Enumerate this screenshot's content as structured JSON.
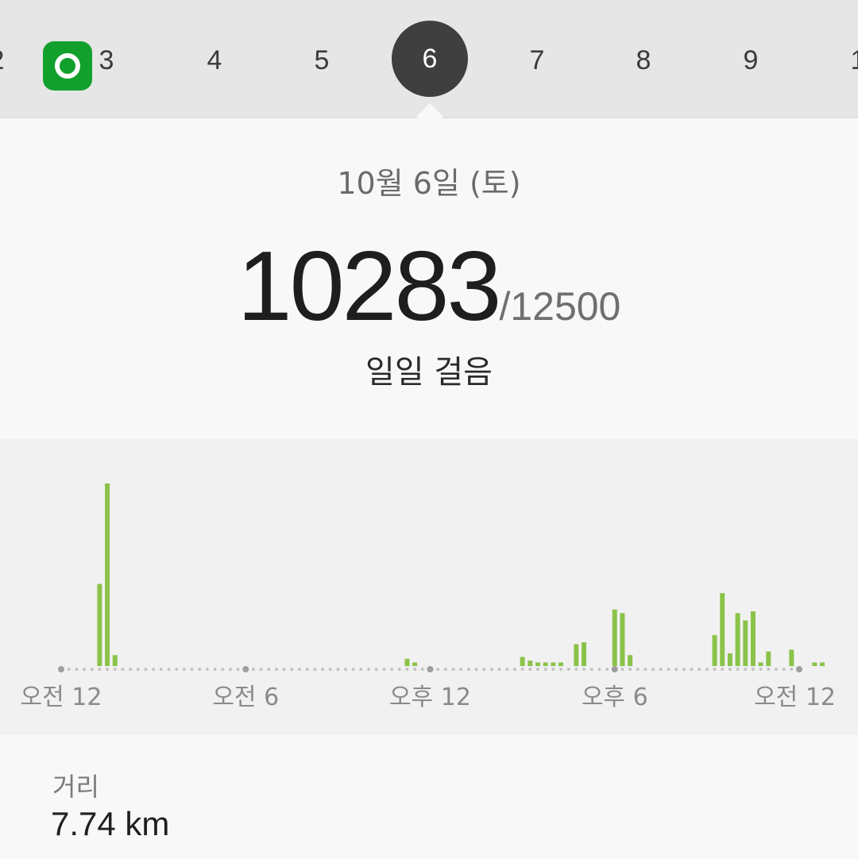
{
  "date_strip": {
    "days": [
      "2",
      "3",
      "4",
      "5",
      "6",
      "7",
      "8",
      "9",
      "1"
    ],
    "selected_day": "6"
  },
  "summary": {
    "date": "10월 6일 (토)",
    "steps": "10283",
    "goal": "/12500",
    "label": "일일 걸음"
  },
  "chart_data": {
    "type": "bar",
    "x_axis_labels": [
      "오전 12",
      "오전 6",
      "오후 12",
      "오후 6",
      "오전 12"
    ],
    "interval_minutes": 15,
    "y_max": 1.0,
    "bars": [
      {
        "slot": 5,
        "value": 0.45
      },
      {
        "slot": 6,
        "value": 1.0
      },
      {
        "slot": 7,
        "value": 0.06
      },
      {
        "slot": 45,
        "value": 0.04
      },
      {
        "slot": 46,
        "value": 0.02
      },
      {
        "slot": 60,
        "value": 0.05
      },
      {
        "slot": 61,
        "value": 0.03
      },
      {
        "slot": 62,
        "value": 0.02
      },
      {
        "slot": 63,
        "value": 0.02
      },
      {
        "slot": 64,
        "value": 0.02
      },
      {
        "slot": 65,
        "value": 0.02
      },
      {
        "slot": 67,
        "value": 0.12
      },
      {
        "slot": 68,
        "value": 0.13
      },
      {
        "slot": 72,
        "value": 0.31
      },
      {
        "slot": 73,
        "value": 0.29
      },
      {
        "slot": 74,
        "value": 0.06
      },
      {
        "slot": 85,
        "value": 0.17
      },
      {
        "slot": 86,
        "value": 0.4
      },
      {
        "slot": 87,
        "value": 0.07
      },
      {
        "slot": 88,
        "value": 0.29
      },
      {
        "slot": 89,
        "value": 0.25
      },
      {
        "slot": 90,
        "value": 0.3
      },
      {
        "slot": 91,
        "value": 0.02
      },
      {
        "slot": 92,
        "value": 0.08
      },
      {
        "slot": 95,
        "value": 0.09
      },
      {
        "slot": 98,
        "value": 0.02
      },
      {
        "slot": 99,
        "value": 0.02
      },
      {
        "slot": 105,
        "value": 0.02
      },
      {
        "slot": 106,
        "value": 0.02
      }
    ],
    "bar_color": "#8bc34a",
    "dot_color": "#c3c3c3",
    "tick_color": "#9e9e9e"
  },
  "distance": {
    "label": "거리",
    "value": "7.74 km"
  }
}
